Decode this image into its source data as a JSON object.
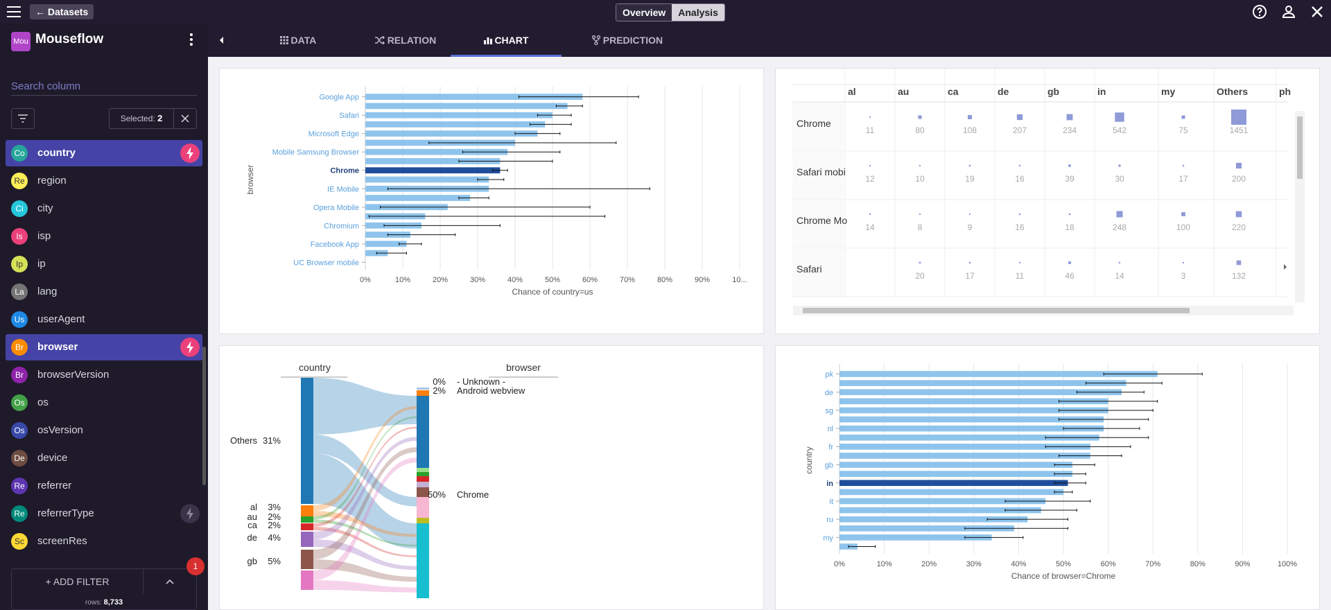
{
  "topbar": {
    "back_label": "← Datasets",
    "tabs_toggle": [
      "Overview",
      "Analysis"
    ],
    "active_toggle": "Analysis"
  },
  "sidebar": {
    "dataset_initials": "Mou",
    "dataset_name": "Mouseflow",
    "search_placeholder": "Search column",
    "selected_label": "Selected:",
    "selected_count": "2",
    "columns": [
      {
        "initials": "Co",
        "label": "country",
        "color": "#26a69a",
        "selected": true,
        "bolt": "pink"
      },
      {
        "initials": "Re",
        "label": "region",
        "color": "#ffee58",
        "selected": false
      },
      {
        "initials": "Ci",
        "label": "city",
        "color": "#26c6da",
        "selected": false
      },
      {
        "initials": "Is",
        "label": "isp",
        "color": "#ec407a",
        "selected": false
      },
      {
        "initials": "Ip",
        "label": "ip",
        "color": "#d4e157",
        "selected": false
      },
      {
        "initials": "La",
        "label": "lang",
        "color": "#757575",
        "selected": false
      },
      {
        "initials": "Us",
        "label": "userAgent",
        "color": "#1e88e5",
        "selected": false
      },
      {
        "initials": "Br",
        "label": "browser",
        "color": "#fb8c00",
        "selected": true,
        "bolt": "pink"
      },
      {
        "initials": "Br",
        "label": "browserVersion",
        "color": "#8e24aa",
        "selected": false
      },
      {
        "initials": "Os",
        "label": "os",
        "color": "#43a047",
        "selected": false
      },
      {
        "initials": "Os",
        "label": "osVersion",
        "color": "#3949ab",
        "selected": false
      },
      {
        "initials": "De",
        "label": "device",
        "color": "#6d4c41",
        "selected": false
      },
      {
        "initials": "Re",
        "label": "referrer",
        "color": "#5e35b1",
        "selected": false
      },
      {
        "initials": "Re",
        "label": "referrerType",
        "color": "#00897b",
        "selected": false,
        "bolt": "gray"
      },
      {
        "initials": "Sc",
        "label": "screenRes",
        "color": "#fdd835",
        "selected": false
      }
    ],
    "add_filter_label": "+ ADD FILTER",
    "rows_label": "rows:",
    "rows_value": "8,733",
    "badge_count": "1"
  },
  "tabs": [
    {
      "icon": "grid-icon",
      "label": "DATA"
    },
    {
      "icon": "shuffle-icon",
      "label": "RELATION"
    },
    {
      "icon": "bar-chart-icon",
      "label": "CHART"
    },
    {
      "icon": "fork-icon",
      "label": "PREDICTION"
    }
  ],
  "active_tab": "CHART",
  "chart_data": [
    {
      "type": "bar",
      "orientation": "horizontal",
      "ylabel": "browser",
      "xlabel": "Chance of country=us",
      "xlim": [
        0,
        100
      ],
      "x_ticks": [
        "0%",
        "10%",
        "20%",
        "30%",
        "40%",
        "50%",
        "60%",
        "70%",
        "80%",
        "90%",
        "10..."
      ],
      "categories": [
        "Google App",
        "",
        "Safari",
        "",
        "Microsoft Edge",
        "",
        "Mobile Samsung Browser",
        "",
        "Chrome",
        "",
        "IE Mobile",
        "",
        "Opera Mobile",
        "",
        "Chromium",
        "",
        "Facebook App",
        "",
        "UC Browser mobile"
      ],
      "values": [
        58,
        54,
        50,
        48,
        46,
        40,
        38,
        36,
        36,
        33,
        33,
        28,
        22,
        16,
        15,
        12,
        11,
        6,
        0
      ],
      "error_low": [
        41,
        51,
        46,
        44,
        40,
        17,
        26,
        25,
        34,
        30,
        6,
        25,
        4,
        1,
        5,
        6,
        9,
        3,
        0
      ],
      "error_high": [
        73,
        58,
        55,
        55,
        52,
        67,
        52,
        50,
        38,
        37,
        76,
        33,
        60,
        64,
        36,
        24,
        15,
        11,
        0
      ],
      "highlight": "Chrome"
    },
    {
      "type": "table",
      "columns": [
        "al",
        "au",
        "ca",
        "de",
        "gb",
        "in",
        "my",
        "Others",
        "ph"
      ],
      "rows": [
        {
          "label": "Chrome",
          "values": [
            "11",
            "80",
            "108",
            "207",
            "234",
            "542",
            "75",
            "1451",
            ""
          ]
        },
        {
          "label": "Safari mobi",
          "values": [
            "12",
            "10",
            "19",
            "16",
            "39",
            "30",
            "17",
            "200",
            ""
          ]
        },
        {
          "label": "Chrome Mo",
          "values": [
            "14",
            "8",
            "9",
            "16",
            "18",
            "248",
            "100",
            "220",
            ""
          ]
        },
        {
          "label": "Safari",
          "values": [
            "",
            "20",
            "17",
            "11",
            "46",
            "14",
            "3",
            "132",
            ""
          ]
        }
      ]
    },
    {
      "type": "sankey",
      "left_header": "country",
      "right_header": "browser",
      "left_nodes": [
        {
          "label": "Others",
          "pct": "31%",
          "color": "#1f77b4"
        },
        {
          "label": "al",
          "pct": "3%",
          "color": "#ff7f0e"
        },
        {
          "label": "au",
          "pct": "2%",
          "color": "#2ca02c"
        },
        {
          "label": "ca",
          "pct": "2%",
          "color": "#d62728"
        },
        {
          "label": "de",
          "pct": "4%",
          "color": "#9467bd"
        },
        {
          "label": "gb",
          "pct": "5%",
          "color": "#8c564b"
        }
      ],
      "right_nodes": [
        {
          "pct": "0%",
          "label": "- Unknown -"
        },
        {
          "pct": "2%",
          "label": "Android webview"
        },
        {
          "pct": "50%",
          "label": "Chrome"
        }
      ]
    },
    {
      "type": "bar",
      "orientation": "horizontal",
      "ylabel": "country",
      "xlabel": "Chance of browser=Chrome",
      "xlim": [
        0,
        100
      ],
      "x_ticks": [
        "0%",
        "10%",
        "20%",
        "30%",
        "40%",
        "50%",
        "60%",
        "70%",
        "80%",
        "90%",
        "100%"
      ],
      "categories": [
        "pk",
        "",
        "de",
        "",
        "sg",
        "",
        "nl",
        "",
        "fr",
        "",
        "gb",
        "",
        "in",
        "",
        "it",
        "",
        "ru",
        "",
        "my",
        ""
      ],
      "values": [
        71,
        64,
        63,
        60,
        60,
        59,
        59,
        58,
        56,
        56,
        52,
        52,
        51,
        50,
        46,
        45,
        42,
        39,
        34,
        4
      ],
      "error_low": [
        59,
        55,
        53,
        49,
        49,
        49,
        50,
        46,
        46,
        49,
        48,
        48,
        48,
        48,
        37,
        37,
        33,
        28,
        28,
        2
      ],
      "error_high": [
        81,
        72,
        68,
        71,
        70,
        69,
        67,
        69,
        65,
        63,
        57,
        55,
        55,
        52,
        56,
        53,
        51,
        51,
        41,
        8
      ],
      "highlight": "in"
    }
  ]
}
